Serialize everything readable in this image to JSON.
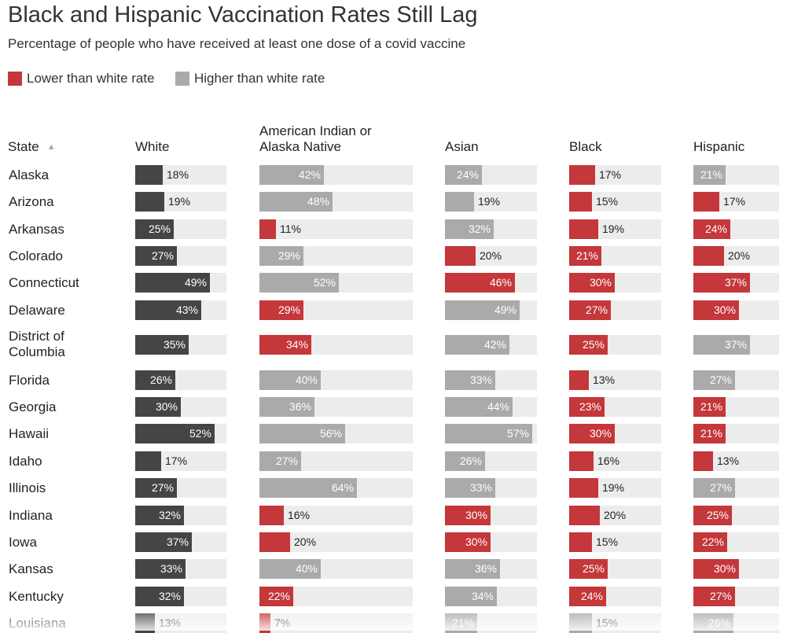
{
  "header": {
    "title": "Black and Hispanic Vaccination Rates Still Lag",
    "subtitle": "Percentage of people who have received at least one dose of a covid vaccine"
  },
  "legend": [
    {
      "label": "Lower than white rate",
      "color": "#c4373a"
    },
    {
      "label": "Higher than white rate",
      "color": "#aaaaaa"
    }
  ],
  "colors": {
    "white": "#454545",
    "lower": "#c4373a",
    "higher": "#aaaaaa",
    "track": "#ececec"
  },
  "columns": {
    "state": "State",
    "white": "White",
    "aian": "American Indian or\nAlaska Native",
    "asian": "Asian",
    "black": "Black",
    "hispanic": "Hispanic"
  },
  "chart_data": {
    "type": "bar",
    "title": "Black and Hispanic Vaccination Rates Still Lag",
    "subtitle": "Percentage of people who have received at least one dose of a covid vaccine",
    "unit": "%",
    "xlim": [
      0,
      100
    ],
    "categories": [
      "Alaska",
      "Arizona",
      "Arkansas",
      "Colorado",
      "Connecticut",
      "Delaware",
      "District of Columbia",
      "Florida",
      "Georgia",
      "Hawaii",
      "Idaho",
      "Illinois",
      "Indiana",
      "Iowa",
      "Kansas",
      "Kentucky",
      "Louisiana"
    ],
    "series": [
      {
        "name": "White",
        "values": [
          18,
          19,
          25,
          27,
          49,
          43,
          35,
          26,
          30,
          52,
          17,
          27,
          32,
          37,
          33,
          32,
          13
        ]
      },
      {
        "name": "American Indian or Alaska Native",
        "values": [
          42,
          48,
          11,
          29,
          52,
          29,
          34,
          40,
          36,
          56,
          27,
          64,
          16,
          20,
          40,
          22,
          7
        ]
      },
      {
        "name": "Asian",
        "values": [
          24,
          19,
          32,
          20,
          46,
          49,
          42,
          33,
          44,
          57,
          26,
          33,
          30,
          30,
          36,
          34,
          21
        ]
      },
      {
        "name": "Black",
        "values": [
          17,
          15,
          19,
          21,
          30,
          27,
          25,
          13,
          23,
          30,
          16,
          19,
          20,
          15,
          25,
          24,
          15
        ]
      },
      {
        "name": "Hispanic",
        "values": [
          21,
          17,
          24,
          20,
          37,
          30,
          37,
          27,
          21,
          21,
          13,
          27,
          25,
          22,
          30,
          27,
          26
        ]
      }
    ],
    "legend_position": "top-left",
    "sorted_by": "State"
  }
}
